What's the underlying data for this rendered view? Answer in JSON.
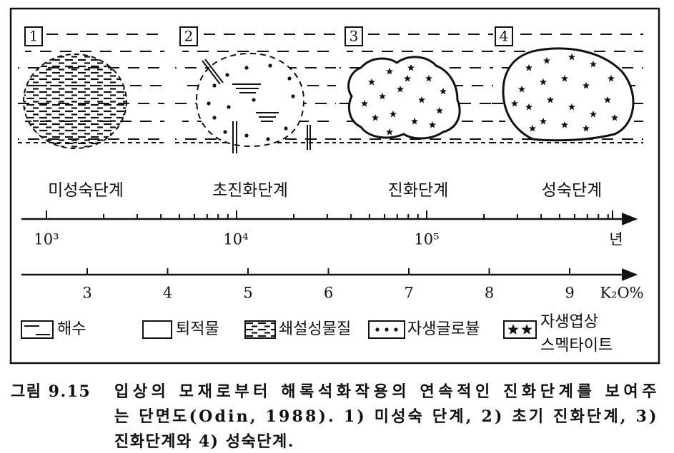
{
  "panels": [
    {
      "number": "1"
    },
    {
      "number": "2"
    },
    {
      "number": "3"
    },
    {
      "number": "4"
    }
  ],
  "stages": [
    "미성숙단계",
    "초진화단계",
    "진화단계",
    "성숙단계"
  ],
  "time_axis": {
    "labels": [
      "10³",
      "10⁴",
      "10⁵"
    ],
    "unit": "년"
  },
  "k2o_axis": {
    "labels": [
      "3",
      "4",
      "5",
      "6",
      "7",
      "8",
      "9"
    ],
    "unit": "K₂O%"
  },
  "legend": [
    "해수",
    "퇴적물",
    "쇄설성물질",
    "자생글로뷸",
    [
      "자생엽상",
      "스멕타이트"
    ]
  ],
  "caption": {
    "label": "그림 9.15",
    "lines": [
      "입상의 모재로부터 해록석화작용의 연속적인 진화단계를 보여주",
      "는 단면도(Odin, 1988). 1) 미성숙 단계, 2) 초기 진화단계, 3)",
      "진화단계와 4) 성숙단계."
    ]
  }
}
